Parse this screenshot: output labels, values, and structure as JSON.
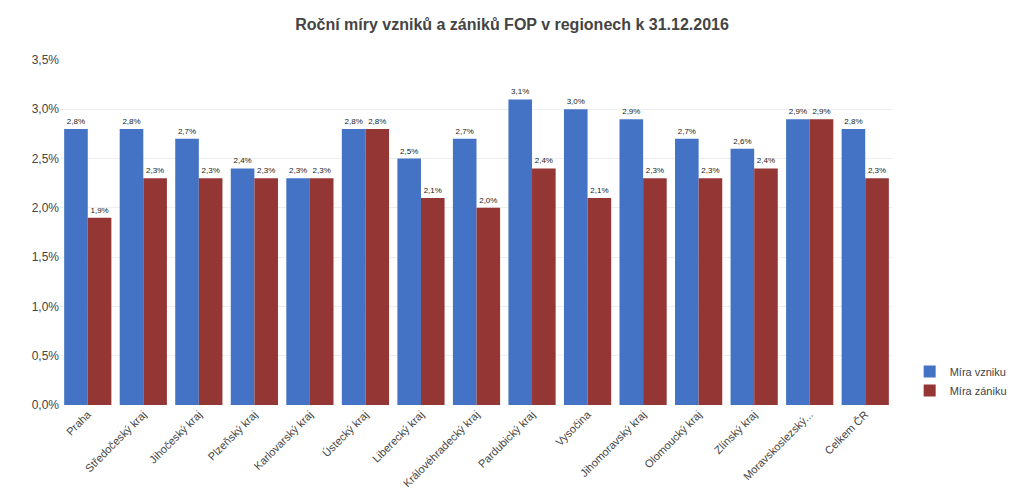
{
  "chart_data": {
    "type": "bar",
    "title": "Roční míry vzniků a zániků FOP v regionech k 31.12.2016",
    "categories": [
      "Praha",
      "Středočeský kraj",
      "Jihočeský kraj",
      "Plzeňský kraj",
      "Karlovarský kraj",
      "Ústecký kraj",
      "Liberecký kraj",
      "Královéhradecký kraj",
      "Pardubický kraj",
      "Vysočina",
      "Jihomoravský kraj",
      "Olomoucký kraj",
      "Zlínský kraj",
      "Moravskoslezský...",
      "Celkem ČR"
    ],
    "series": [
      {
        "name": "Míra vzniku",
        "color": "#4472C4",
        "values": [
          2.8,
          2.8,
          2.7,
          2.4,
          2.3,
          2.8,
          2.5,
          2.7,
          3.1,
          3.0,
          2.9,
          2.7,
          2.6,
          2.9,
          2.8
        ],
        "value_labels": [
          "2,8%",
          "2,8%",
          "2,7%",
          "2,4%",
          "2,3%",
          "2,8%",
          "2,5%",
          "2,7%",
          "3,1%",
          "3,0%",
          "2,9%",
          "2,7%",
          "2,6%",
          "2,9%",
          "2,8%"
        ]
      },
      {
        "name": "Míra zániku",
        "color": "#943634",
        "values": [
          1.9,
          2.3,
          2.3,
          2.3,
          2.3,
          2.8,
          2.1,
          2.0,
          2.4,
          2.1,
          2.3,
          2.3,
          2.4,
          2.9,
          2.3
        ],
        "value_labels": [
          "1,9%",
          "2,3%",
          "2,3%",
          "2,3%",
          "2,3%",
          "2,8%",
          "2,1%",
          "2,0%",
          "2,4%",
          "2,1%",
          "2,3%",
          "2,3%",
          "2,4%",
          "2,9%",
          "2,3%"
        ]
      }
    ],
    "ylim": [
      0,
      3.5
    ],
    "yticks": [
      {
        "value": 0.0,
        "label": "0,0%"
      },
      {
        "value": 0.5,
        "label": "0,5%"
      },
      {
        "value": 1.0,
        "label": "1,0%"
      },
      {
        "value": 1.5,
        "label": "1,5%"
      },
      {
        "value": 2.0,
        "label": "2,0%"
      },
      {
        "value": 2.5,
        "label": "2,5%"
      },
      {
        "value": 3.0,
        "label": "3,0%"
      },
      {
        "value": 3.5,
        "label": "3,5%"
      }
    ],
    "grid": true,
    "legend": "lower right",
    "data_labels": true
  }
}
